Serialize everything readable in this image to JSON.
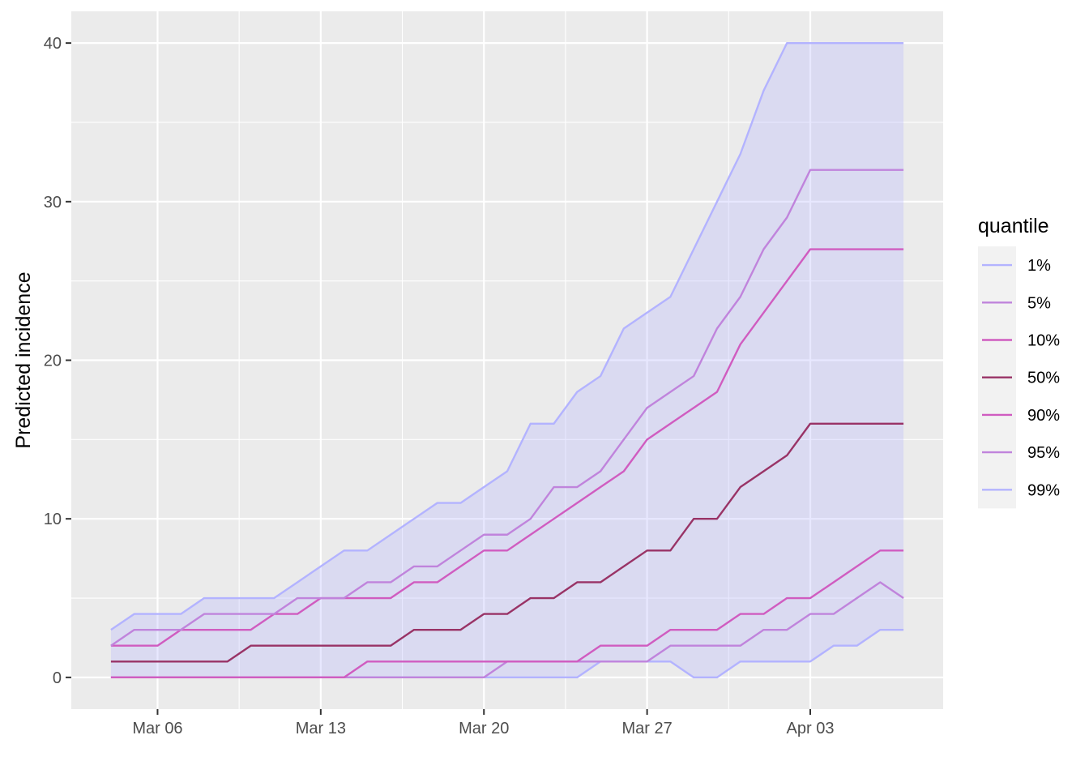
{
  "chart_data": {
    "type": "line",
    "title": "",
    "xlabel": "",
    "ylabel": "Predicted incidence",
    "x_start": "2020-03-04",
    "x_end": "2020-04-02",
    "x_tick_dates": [
      "2020-03-06",
      "2020-03-13",
      "2020-03-20",
      "2020-03-27",
      "2020-04-03"
    ],
    "x_tick_labels": [
      "Mar 06",
      "Mar 13",
      "Mar 20",
      "Mar 27",
      "Apr 03"
    ],
    "ylim": [
      -2,
      42
    ],
    "y_ticks": [
      0,
      10,
      20,
      30,
      40
    ],
    "grid": true,
    "ribbon": {
      "lower_series": "1%",
      "upper_series": "99%",
      "color": "#b3b3ff",
      "opacity": 0.3
    },
    "legend": {
      "title": "quantile",
      "position": "right"
    },
    "series": [
      {
        "name": "1%",
        "color": "#b3b3ff",
        "values": [
          0,
          0,
          0,
          0,
          0,
          0,
          0,
          0,
          0,
          0,
          0,
          0,
          0,
          0,
          0,
          0,
          0,
          0,
          0,
          0,
          0,
          1,
          1,
          1,
          1,
          0,
          0,
          1,
          1,
          1,
          1,
          2,
          2,
          3,
          3
        ]
      },
      {
        "name": "5%",
        "color": "#c084dc",
        "values": [
          0,
          0,
          0,
          0,
          0,
          0,
          0,
          0,
          0,
          0,
          0,
          0,
          0,
          0,
          0,
          0,
          0,
          1,
          1,
          1,
          1,
          1,
          1,
          1,
          2,
          2,
          2,
          2,
          3,
          3,
          4,
          4,
          5,
          6,
          5
        ]
      },
      {
        "name": "10%",
        "color": "#d05cc0",
        "values": [
          0,
          0,
          0,
          0,
          0,
          0,
          0,
          0,
          0,
          0,
          0,
          1,
          1,
          1,
          1,
          1,
          1,
          1,
          1,
          1,
          1,
          2,
          2,
          2,
          3,
          3,
          3,
          4,
          4,
          5,
          5,
          6,
          7,
          8,
          8
        ]
      },
      {
        "name": "50%",
        "color": "#993366",
        "values": [
          1,
          1,
          1,
          1,
          1,
          1,
          2,
          2,
          2,
          2,
          2,
          2,
          2,
          3,
          3,
          3,
          4,
          4,
          5,
          5,
          6,
          6,
          7,
          8,
          8,
          10,
          10,
          12,
          13,
          14,
          16,
          16,
          16,
          16,
          16
        ]
      },
      {
        "name": "90%",
        "color": "#d05cc0",
        "values": [
          2,
          2,
          2,
          3,
          3,
          3,
          3,
          4,
          4,
          5,
          5,
          5,
          5,
          6,
          6,
          7,
          8,
          8,
          9,
          10,
          11,
          12,
          13,
          15,
          16,
          17,
          18,
          21,
          23,
          25,
          27,
          27,
          27,
          27,
          27
        ]
      },
      {
        "name": "95%",
        "color": "#c084dc",
        "values": [
          2,
          3,
          3,
          3,
          4,
          4,
          4,
          4,
          5,
          5,
          5,
          6,
          6,
          7,
          7,
          8,
          9,
          9,
          10,
          12,
          12,
          13,
          15,
          17,
          18,
          19,
          22,
          24,
          27,
          29,
          32,
          32,
          32,
          32,
          32
        ]
      },
      {
        "name": "99%",
        "color": "#b3b3ff",
        "values": [
          3,
          4,
          4,
          4,
          5,
          5,
          5,
          5,
          6,
          7,
          8,
          8,
          9,
          10,
          11,
          11,
          12,
          13,
          16,
          16,
          18,
          19,
          22,
          23,
          24,
          27,
          30,
          33,
          37,
          40,
          40,
          40,
          40,
          40,
          40
        ]
      }
    ]
  }
}
